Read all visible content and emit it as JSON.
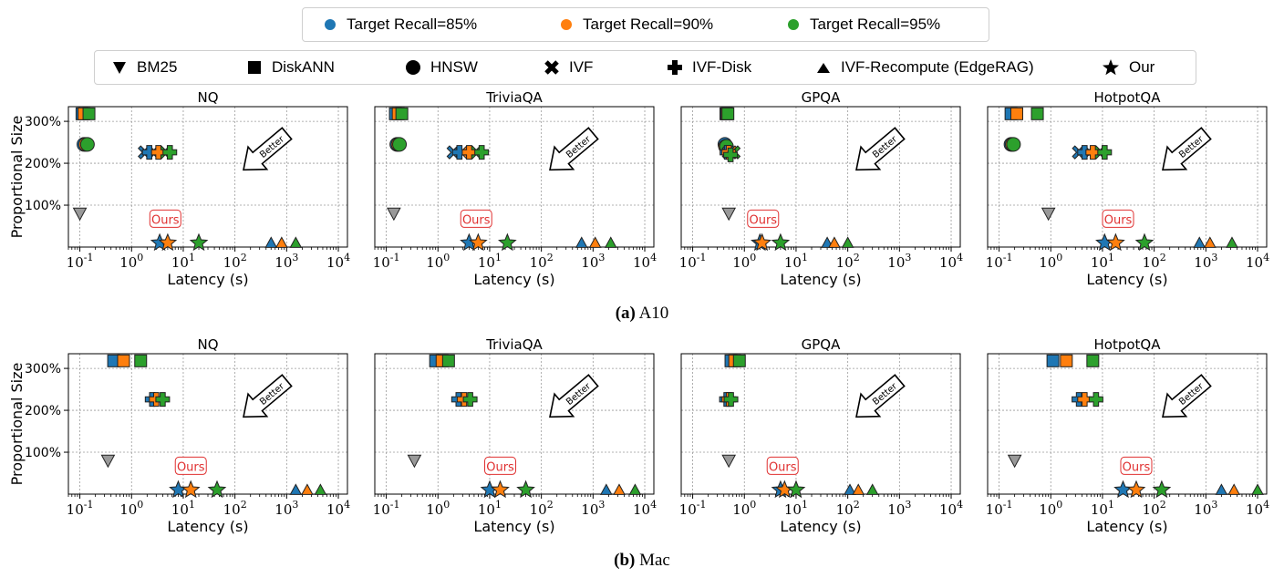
{
  "legend": {
    "recall": [
      {
        "label": "Target Recall=85%",
        "color": "#1f77b4"
      },
      {
        "label": "Target Recall=90%",
        "color": "#ff7f0e"
      },
      {
        "label": "Target Recall=95%",
        "color": "#2ca02c"
      }
    ],
    "methods": [
      {
        "label": "BM25",
        "marker": "triangle-down-icon"
      },
      {
        "label": "DiskANN",
        "marker": "square-icon"
      },
      {
        "label": "HNSW",
        "marker": "circle-icon"
      },
      {
        "label": "IVF",
        "marker": "x-icon"
      },
      {
        "label": "IVF-Disk",
        "marker": "plus-icon"
      },
      {
        "label": "IVF-Recompute (EdgeRAG)",
        "marker": "triangle-up-icon"
      },
      {
        "label": "Our",
        "marker": "star-icon"
      }
    ]
  },
  "captions": [
    {
      "letter": "(a)",
      "text": "A10"
    },
    {
      "letter": "(b)",
      "text": "Mac"
    }
  ],
  "annotation": {
    "ours": "Ours",
    "better": "Better",
    "ours_color": "#e03030"
  },
  "colors": {
    "c85": "#1f77b4",
    "c90": "#ff7f0e",
    "c95": "#2ca02c",
    "bm25": "#999999"
  },
  "chart_data": [
    {
      "row": "A10",
      "type": "scatter",
      "title": "NQ",
      "xlabel": "Latency (s)",
      "ylabel": "Proportional Size",
      "xscale": "log",
      "xlim": [
        0.06,
        15000
      ],
      "ylim": [
        0,
        335
      ],
      "xticks": [
        "10^-1",
        "10^0",
        "10^1",
        "10^2",
        "10^3",
        "10^4"
      ],
      "yticks": [
        "100%",
        "200%",
        "300%"
      ],
      "points": [
        {
          "m": "bm25",
          "r": 0,
          "x": 0.1,
          "y": 80
        },
        {
          "m": "diskann",
          "r": 85,
          "x": 0.11,
          "y": 318
        },
        {
          "m": "diskann",
          "r": 90,
          "x": 0.12,
          "y": 318
        },
        {
          "m": "diskann",
          "r": 95,
          "x": 0.15,
          "y": 318
        },
        {
          "m": "hnsw",
          "r": 85,
          "x": 0.12,
          "y": 245
        },
        {
          "m": "hnsw",
          "r": 90,
          "x": 0.13,
          "y": 245
        },
        {
          "m": "hnsw",
          "r": 95,
          "x": 0.14,
          "y": 245
        },
        {
          "m": "ivf",
          "r": 85,
          "x": 1.8,
          "y": 226
        },
        {
          "m": "ivf",
          "r": 90,
          "x": 2.7,
          "y": 226
        },
        {
          "m": "ivf",
          "r": 95,
          "x": 4.5,
          "y": 226
        },
        {
          "m": "ivfdisk",
          "r": 85,
          "x": 2.2,
          "y": 226
        },
        {
          "m": "ivfdisk",
          "r": 90,
          "x": 3.3,
          "y": 226
        },
        {
          "m": "ivfdisk",
          "r": 95,
          "x": 5.5,
          "y": 226
        },
        {
          "m": "ivfrec",
          "r": 85,
          "x": 500,
          "y": 10
        },
        {
          "m": "ivfrec",
          "r": 90,
          "x": 800,
          "y": 10
        },
        {
          "m": "ivfrec",
          "r": 95,
          "x": 1500,
          "y": 10
        },
        {
          "m": "our",
          "r": 85,
          "x": 3.5,
          "y": 10
        },
        {
          "m": "our",
          "r": 90,
          "x": 5,
          "y": 10
        },
        {
          "m": "our",
          "r": 95,
          "x": 20,
          "y": 10
        }
      ],
      "ours_x": 4.5
    },
    {
      "row": "A10",
      "type": "scatter",
      "title": "TriviaQA",
      "xlabel": "Latency (s)",
      "ylabel": "",
      "xscale": "log",
      "xlim": [
        0.06,
        15000
      ],
      "ylim": [
        0,
        335
      ],
      "xticks": [
        "10^-1",
        "10^0",
        "10^1",
        "10^2",
        "10^3",
        "10^4"
      ],
      "yticks": [],
      "points": [
        {
          "m": "bm25",
          "r": 0,
          "x": 0.14,
          "y": 80
        },
        {
          "m": "diskann",
          "r": 85,
          "x": 0.15,
          "y": 318
        },
        {
          "m": "diskann",
          "r": 90,
          "x": 0.17,
          "y": 318
        },
        {
          "m": "diskann",
          "r": 95,
          "x": 0.2,
          "y": 318
        },
        {
          "m": "hnsw",
          "r": 85,
          "x": 0.16,
          "y": 245
        },
        {
          "m": "hnsw",
          "r": 90,
          "x": 0.17,
          "y": 245
        },
        {
          "m": "hnsw",
          "r": 95,
          "x": 0.18,
          "y": 245
        },
        {
          "m": "ivf",
          "r": 85,
          "x": 2.0,
          "y": 226
        },
        {
          "m": "ivf",
          "r": 90,
          "x": 3.0,
          "y": 226
        },
        {
          "m": "ivf",
          "r": 95,
          "x": 5.5,
          "y": 226
        },
        {
          "m": "ivfdisk",
          "r": 85,
          "x": 2.6,
          "y": 226
        },
        {
          "m": "ivfdisk",
          "r": 90,
          "x": 4.0,
          "y": 226
        },
        {
          "m": "ivfdisk",
          "r": 95,
          "x": 7.0,
          "y": 226
        },
        {
          "m": "ivfrec",
          "r": 85,
          "x": 600,
          "y": 10
        },
        {
          "m": "ivfrec",
          "r": 90,
          "x": 1100,
          "y": 10
        },
        {
          "m": "ivfrec",
          "r": 95,
          "x": 2200,
          "y": 10
        },
        {
          "m": "our",
          "r": 85,
          "x": 4,
          "y": 10
        },
        {
          "m": "our",
          "r": 90,
          "x": 6,
          "y": 10
        },
        {
          "m": "our",
          "r": 95,
          "x": 22,
          "y": 10
        }
      ],
      "ours_x": 5.5
    },
    {
      "row": "A10",
      "type": "scatter",
      "title": "GPQA",
      "xlabel": "Latency (s)",
      "ylabel": "",
      "xscale": "log",
      "xlim": [
        0.06,
        15000
      ],
      "ylim": [
        0,
        335
      ],
      "xticks": [
        "10^-1",
        "10^0",
        "10^1",
        "10^2",
        "10^3",
        "10^4"
      ],
      "yticks": [],
      "points": [
        {
          "m": "bm25",
          "r": 0,
          "x": 0.5,
          "y": 80
        },
        {
          "m": "diskann",
          "r": 85,
          "x": 0.44,
          "y": 318
        },
        {
          "m": "diskann",
          "r": 90,
          "x": 0.46,
          "y": 318
        },
        {
          "m": "diskann",
          "r": 95,
          "x": 0.48,
          "y": 318
        },
        {
          "m": "hnsw",
          "r": 85,
          "x": 0.42,
          "y": 245
        },
        {
          "m": "hnsw",
          "r": 90,
          "x": 0.43,
          "y": 240
        },
        {
          "m": "hnsw",
          "r": 95,
          "x": 0.45,
          "y": 240
        },
        {
          "m": "ivf",
          "r": 85,
          "x": 0.5,
          "y": 226
        },
        {
          "m": "ivf",
          "r": 90,
          "x": 0.55,
          "y": 226
        },
        {
          "m": "ivf",
          "r": 95,
          "x": 0.62,
          "y": 226
        },
        {
          "m": "ivfdisk",
          "r": 85,
          "x": 0.46,
          "y": 226
        },
        {
          "m": "ivfdisk",
          "r": 90,
          "x": 0.5,
          "y": 226
        },
        {
          "m": "ivfdisk",
          "r": 95,
          "x": 0.54,
          "y": 220
        },
        {
          "m": "ivfrec",
          "r": 85,
          "x": 40,
          "y": 10
        },
        {
          "m": "ivfrec",
          "r": 90,
          "x": 55,
          "y": 10
        },
        {
          "m": "ivfrec",
          "r": 95,
          "x": 100,
          "y": 10
        },
        {
          "m": "our",
          "r": 85,
          "x": 2.0,
          "y": 10
        },
        {
          "m": "our",
          "r": 90,
          "x": 2.2,
          "y": 10
        },
        {
          "m": "our",
          "r": 95,
          "x": 5,
          "y": 10
        }
      ],
      "ours_x": 2.3
    },
    {
      "row": "A10",
      "type": "scatter",
      "title": "HotpotQA",
      "xlabel": "Latency (s)",
      "ylabel": "",
      "xscale": "log",
      "xlim": [
        0.06,
        15000
      ],
      "ylim": [
        0,
        335
      ],
      "xticks": [
        "10^-1",
        "10^0",
        "10^1",
        "10^2",
        "10^3",
        "10^4"
      ],
      "yticks": [],
      "points": [
        {
          "m": "bm25",
          "r": 0,
          "x": 0.9,
          "y": 80
        },
        {
          "m": "diskann",
          "r": 85,
          "x": 0.17,
          "y": 318
        },
        {
          "m": "diskann",
          "r": 90,
          "x": 0.22,
          "y": 318
        },
        {
          "m": "diskann",
          "r": 95,
          "x": 0.55,
          "y": 318
        },
        {
          "m": "hnsw",
          "r": 85,
          "x": 0.17,
          "y": 245
        },
        {
          "m": "hnsw",
          "r": 90,
          "x": 0.18,
          "y": 245
        },
        {
          "m": "hnsw",
          "r": 95,
          "x": 0.19,
          "y": 245
        },
        {
          "m": "ivf",
          "r": 85,
          "x": 3.5,
          "y": 226
        },
        {
          "m": "ivf",
          "r": 90,
          "x": 5.5,
          "y": 226
        },
        {
          "m": "ivf",
          "r": 95,
          "x": 9,
          "y": 226
        },
        {
          "m": "ivfdisk",
          "r": 85,
          "x": 4.5,
          "y": 226
        },
        {
          "m": "ivfdisk",
          "r": 90,
          "x": 6.5,
          "y": 226
        },
        {
          "m": "ivfdisk",
          "r": 95,
          "x": 11,
          "y": 226
        },
        {
          "m": "ivfrec",
          "r": 85,
          "x": 750,
          "y": 10
        },
        {
          "m": "ivfrec",
          "r": 90,
          "x": 1200,
          "y": 10
        },
        {
          "m": "ivfrec",
          "r": 95,
          "x": 3200,
          "y": 10
        },
        {
          "m": "our",
          "r": 85,
          "x": 11,
          "y": 10
        },
        {
          "m": "our",
          "r": 90,
          "x": 18,
          "y": 10
        },
        {
          "m": "our",
          "r": 95,
          "x": 65,
          "y": 10
        }
      ],
      "ours_x": 20
    },
    {
      "row": "Mac",
      "type": "scatter",
      "title": "NQ",
      "xlabel": "Latency (s)",
      "ylabel": "Proportional Size",
      "xscale": "log",
      "xlim": [
        0.06,
        15000
      ],
      "ylim": [
        0,
        335
      ],
      "xticks": [
        "10^-1",
        "10^0",
        "10^1",
        "10^2",
        "10^3",
        "10^4"
      ],
      "yticks": [
        "100%",
        "200%",
        "300%"
      ],
      "points": [
        {
          "m": "bm25",
          "r": 0,
          "x": 0.35,
          "y": 80
        },
        {
          "m": "diskann",
          "r": 85,
          "x": 0.45,
          "y": 318
        },
        {
          "m": "diskann",
          "r": 90,
          "x": 0.7,
          "y": 318
        },
        {
          "m": "diskann",
          "r": 95,
          "x": 1.5,
          "y": 318
        },
        {
          "m": "ivfdisk",
          "r": 85,
          "x": 2.5,
          "y": 226
        },
        {
          "m": "ivfdisk",
          "r": 90,
          "x": 3.0,
          "y": 226
        },
        {
          "m": "ivfdisk",
          "r": 95,
          "x": 4.0,
          "y": 226
        },
        {
          "m": "ivfrec",
          "r": 85,
          "x": 1500,
          "y": 10
        },
        {
          "m": "ivfrec",
          "r": 90,
          "x": 2500,
          "y": 10
        },
        {
          "m": "ivfrec",
          "r": 95,
          "x": 4500,
          "y": 10
        },
        {
          "m": "our",
          "r": 85,
          "x": 8,
          "y": 10
        },
        {
          "m": "our",
          "r": 90,
          "x": 14,
          "y": 10
        },
        {
          "m": "our",
          "r": 95,
          "x": 45,
          "y": 10
        }
      ],
      "ours_x": 14
    },
    {
      "row": "Mac",
      "type": "scatter",
      "title": "TriviaQA",
      "xlabel": "Latency (s)",
      "ylabel": "",
      "xscale": "log",
      "xlim": [
        0.06,
        15000
      ],
      "ylim": [
        0,
        335
      ],
      "xticks": [
        "10^-1",
        "10^0",
        "10^1",
        "10^2",
        "10^3",
        "10^4"
      ],
      "yticks": [],
      "points": [
        {
          "m": "bm25",
          "r": 0,
          "x": 0.35,
          "y": 80
        },
        {
          "m": "diskann",
          "r": 85,
          "x": 0.9,
          "y": 318
        },
        {
          "m": "diskann",
          "r": 90,
          "x": 1.2,
          "y": 318
        },
        {
          "m": "diskann",
          "r": 95,
          "x": 1.6,
          "y": 318
        },
        {
          "m": "ivfdisk",
          "r": 85,
          "x": 2.5,
          "y": 226
        },
        {
          "m": "ivfdisk",
          "r": 90,
          "x": 3.2,
          "y": 226
        },
        {
          "m": "ivfdisk",
          "r": 95,
          "x": 4.2,
          "y": 226
        },
        {
          "m": "ivfrec",
          "r": 85,
          "x": 1800,
          "y": 10
        },
        {
          "m": "ivfrec",
          "r": 90,
          "x": 3200,
          "y": 10
        },
        {
          "m": "ivfrec",
          "r": 95,
          "x": 6500,
          "y": 10
        },
        {
          "m": "our",
          "r": 85,
          "x": 10,
          "y": 10
        },
        {
          "m": "our",
          "r": 90,
          "x": 16,
          "y": 10
        },
        {
          "m": "our",
          "r": 95,
          "x": 50,
          "y": 10
        }
      ],
      "ours_x": 16
    },
    {
      "row": "Mac",
      "type": "scatter",
      "title": "GPQA",
      "xlabel": "Latency (s)",
      "ylabel": "",
      "xscale": "log",
      "xlim": [
        0.06,
        15000
      ],
      "ylim": [
        0,
        335
      ],
      "xticks": [
        "10^-1",
        "10^0",
        "10^1",
        "10^2",
        "10^3",
        "10^4"
      ],
      "yticks": [],
      "points": [
        {
          "m": "bm25",
          "r": 0,
          "x": 0.5,
          "y": 80
        },
        {
          "m": "diskann",
          "r": 85,
          "x": 0.55,
          "y": 318
        },
        {
          "m": "diskann",
          "r": 90,
          "x": 0.65,
          "y": 318
        },
        {
          "m": "diskann",
          "r": 95,
          "x": 0.8,
          "y": 318
        },
        {
          "m": "ivfdisk",
          "r": 85,
          "x": 0.45,
          "y": 226
        },
        {
          "m": "ivfdisk",
          "r": 90,
          "x": 0.5,
          "y": 226
        },
        {
          "m": "ivfdisk",
          "r": 95,
          "x": 0.55,
          "y": 226
        },
        {
          "m": "ivfrec",
          "r": 85,
          "x": 110,
          "y": 10
        },
        {
          "m": "ivfrec",
          "r": 90,
          "x": 160,
          "y": 10
        },
        {
          "m": "ivfrec",
          "r": 95,
          "x": 300,
          "y": 10
        },
        {
          "m": "our",
          "r": 85,
          "x": 5,
          "y": 10
        },
        {
          "m": "our",
          "r": 90,
          "x": 6,
          "y": 10
        },
        {
          "m": "our",
          "r": 95,
          "x": 10,
          "y": 10
        }
      ],
      "ours_x": 5.5
    },
    {
      "row": "Mac",
      "type": "scatter",
      "title": "HotpotQA",
      "xlabel": "Latency (s)",
      "ylabel": "",
      "xscale": "log",
      "xlim": [
        0.06,
        15000
      ],
      "ylim": [
        0,
        335
      ],
      "xticks": [
        "10^-1",
        "10^0",
        "10^1",
        "10^2",
        "10^3",
        "10^4"
      ],
      "yticks": [],
      "points": [
        {
          "m": "bm25",
          "r": 0,
          "x": 0.2,
          "y": 80
        },
        {
          "m": "diskann",
          "r": 85,
          "x": 1.1,
          "y": 318
        },
        {
          "m": "diskann",
          "r": 90,
          "x": 2.0,
          "y": 318
        },
        {
          "m": "diskann",
          "r": 95,
          "x": 6.5,
          "y": 318
        },
        {
          "m": "ivfdisk",
          "r": 85,
          "x": 3.5,
          "y": 226
        },
        {
          "m": "ivfdisk",
          "r": 90,
          "x": 4.5,
          "y": 226
        },
        {
          "m": "ivfdisk",
          "r": 95,
          "x": 7.5,
          "y": 226
        },
        {
          "m": "ivfrec",
          "r": 85,
          "x": 2000,
          "y": 10
        },
        {
          "m": "ivfrec",
          "r": 90,
          "x": 3500,
          "y": 10
        },
        {
          "m": "ivfrec",
          "r": 95,
          "x": 10000,
          "y": 10
        },
        {
          "m": "our",
          "r": 85,
          "x": 25,
          "y": 10
        },
        {
          "m": "our",
          "r": 90,
          "x": 45,
          "y": 10
        },
        {
          "m": "our",
          "r": 95,
          "x": 140,
          "y": 10
        }
      ],
      "ours_x": 45
    }
  ]
}
